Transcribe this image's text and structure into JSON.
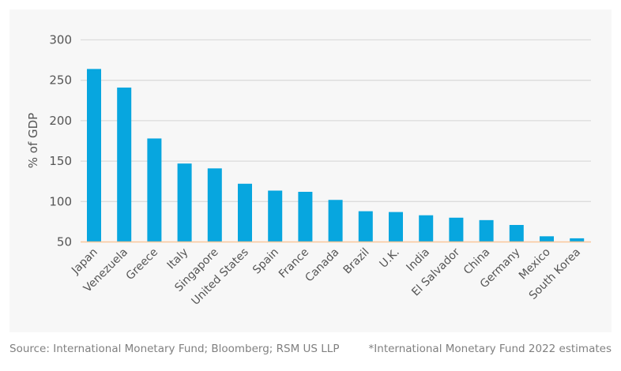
{
  "chart_data": {
    "type": "bar",
    "ylabel": "% of GDP",
    "xlabel": "",
    "ylim": [
      50,
      300
    ],
    "yticks": [
      "300",
      "250",
      "200",
      "150",
      "100",
      "50"
    ],
    "grid": true,
    "categories": [
      "Japan",
      "Venezuela",
      "Greece",
      "Italy",
      "Singapore",
      "United States",
      "Spain",
      "France",
      "Canada",
      "Brazil",
      "U.K.",
      "India",
      "El Salvador",
      "China",
      "Germany",
      "Mexico",
      "South Korea"
    ],
    "values": [
      264,
      241,
      178,
      147,
      141,
      122,
      113.5,
      112,
      102,
      88,
      87,
      83,
      80,
      77,
      71,
      57,
      54.5
    ],
    "colors": {
      "bar": "#07a6df",
      "baseline": "#f9c79a",
      "grid": "#dcdcdc",
      "panel": "#f7f7f7"
    }
  },
  "footer": {
    "source": "Source: International Monetary Fund; Bloomberg; RSM US LLP",
    "note": "*International Monetary Fund 2022 estimates"
  }
}
